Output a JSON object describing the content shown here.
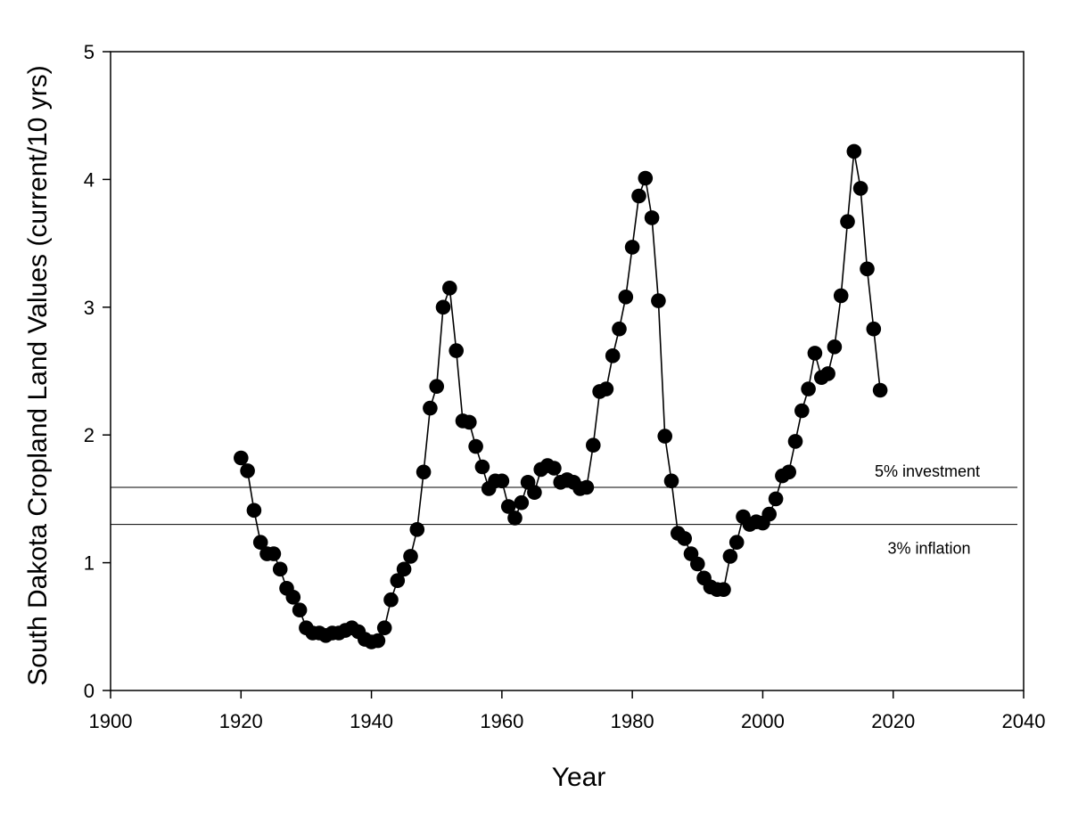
{
  "chart_data": {
    "type": "scatter",
    "title": "",
    "xlabel": "Year",
    "ylabel": "South Dakota Cropland Land Values (current/10 yrs)",
    "xlim": [
      1900,
      2040
    ],
    "ylim": [
      0,
      5
    ],
    "x_ticks": [
      "1900",
      "1920",
      "1940",
      "1960",
      "1980",
      "2000",
      "2020",
      "2040"
    ],
    "y_ticks": [
      "0",
      "1",
      "2",
      "3",
      "4",
      "5"
    ],
    "grid": false,
    "connected": true,
    "marker_color": "#000000",
    "series": [
      {
        "x": [
          1920,
          1921,
          1922,
          1923,
          1924,
          1925,
          1926,
          1927,
          1928,
          1929,
          1930,
          1931,
          1932,
          1933,
          1934,
          1935,
          1936,
          1937,
          1938,
          1939,
          1940,
          1941,
          1942,
          1943,
          1944,
          1945,
          1946,
          1947,
          1948,
          1949,
          1950,
          1951,
          1952,
          1953,
          1954,
          1955,
          1956,
          1957,
          1958,
          1959,
          1960,
          1961,
          1962,
          1963,
          1964,
          1965,
          1966,
          1967,
          1968,
          1969,
          1970,
          1971,
          1972,
          1973,
          1974,
          1975,
          1976,
          1977,
          1978,
          1979,
          1980,
          1981,
          1982,
          1983,
          1984,
          1985,
          1986,
          1987,
          1988,
          1989,
          1990,
          1991,
          1992,
          1993,
          1994,
          1995,
          1996,
          1997,
          1998,
          1999,
          2000,
          2001,
          2002,
          2003,
          2004,
          2005,
          2006,
          2007,
          2008,
          2009,
          2010,
          2011,
          2012,
          2013,
          2014,
          2015,
          2016,
          2017,
          2018
        ],
        "values": [
          1.82,
          1.72,
          1.41,
          1.16,
          1.07,
          1.07,
          0.95,
          0.8,
          0.73,
          0.63,
          0.49,
          0.45,
          0.45,
          0.43,
          0.45,
          0.45,
          0.47,
          0.49,
          0.46,
          0.4,
          0.38,
          0.39,
          0.49,
          0.71,
          0.86,
          0.95,
          1.05,
          1.26,
          1.71,
          2.21,
          2.38,
          3.0,
          3.15,
          2.66,
          2.11,
          2.1,
          1.91,
          1.75,
          1.58,
          1.64,
          1.64,
          1.44,
          1.35,
          1.47,
          1.63,
          1.55,
          1.73,
          1.76,
          1.74,
          1.63,
          1.65,
          1.63,
          1.58,
          1.59,
          1.92,
          2.34,
          2.36,
          2.62,
          2.83,
          3.08,
          3.47,
          3.87,
          4.01,
          3.7,
          3.05,
          1.99,
          1.64,
          1.23,
          1.19,
          1.07,
          0.99,
          0.88,
          0.81,
          0.79,
          0.79,
          1.05,
          1.16,
          1.36,
          1.3,
          1.32,
          1.31,
          1.38,
          1.5,
          1.68,
          1.71,
          1.95,
          2.19,
          2.36,
          2.64,
          2.45,
          2.48,
          2.69,
          3.09,
          3.67,
          4.22,
          3.93,
          3.3,
          2.83,
          2.35
        ]
      }
    ],
    "reference_lines": [
      {
        "label": "5% investment",
        "y": 1.59
      },
      {
        "label": "3% inflation",
        "y": 1.3
      }
    ]
  }
}
